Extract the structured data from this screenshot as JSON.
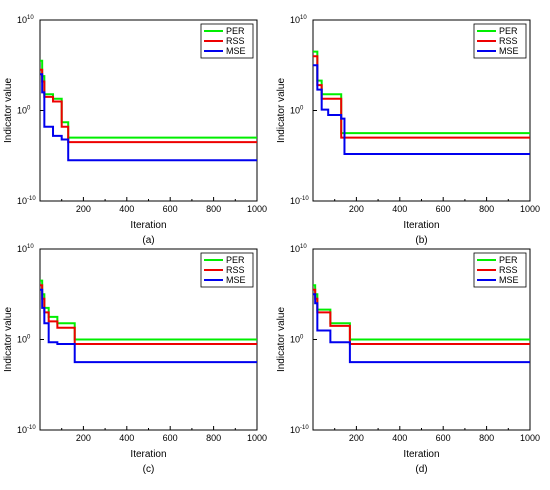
{
  "chart_data": [
    {
      "type": "line",
      "caption": "(a)",
      "xlabel": "Iteration",
      "ylabel": "Indicator value",
      "xlim": [
        0,
        1000
      ],
      "ylim_exp": [
        -10,
        10
      ],
      "y_scale": "log",
      "x_ticks": [
        "200",
        "400",
        "600",
        "800",
        "1000"
      ],
      "y_ticks": [
        {
          "base": "10",
          "exp": "10"
        },
        {
          "base": "10",
          "exp": "0"
        },
        {
          "base": "10",
          "exp": "-10"
        }
      ],
      "legend_position": "top-right",
      "series": [
        {
          "name": "PER",
          "color": "#00ee00",
          "x": [
            0,
            10,
            20,
            30,
            60,
            100,
            130,
            1000
          ],
          "y_exp": [
            5.5,
            3.8,
            1.8,
            1.8,
            1.3,
            -1.3,
            -3.0,
            -3.0
          ]
        },
        {
          "name": "RSS",
          "color": "#ee0000",
          "x": [
            0,
            10,
            20,
            30,
            60,
            100,
            130,
            1000
          ],
          "y_exp": [
            4.5,
            3.2,
            1.5,
            1.5,
            1.0,
            -1.8,
            -3.5,
            -3.5
          ]
        },
        {
          "name": "MSE",
          "color": "#0000ee",
          "x": [
            0,
            10,
            20,
            30,
            60,
            100,
            130,
            1000
          ],
          "y_exp": [
            4.0,
            2.0,
            -1.8,
            -1.8,
            -2.8,
            -3.2,
            -5.5,
            -5.5
          ]
        }
      ]
    },
    {
      "type": "line",
      "caption": "(b)",
      "xlabel": "Iteration",
      "ylabel": "Indicator value",
      "xlim": [
        0,
        1000
      ],
      "ylim_exp": [
        -10,
        10
      ],
      "y_scale": "log",
      "x_ticks": [
        "200",
        "400",
        "600",
        "800",
        "1000"
      ],
      "y_ticks": [
        {
          "base": "10",
          "exp": "10"
        },
        {
          "base": "10",
          "exp": "0"
        },
        {
          "base": "10",
          "exp": "-10"
        }
      ],
      "legend_position": "top-right",
      "series": [
        {
          "name": "PER",
          "color": "#00ee00",
          "x": [
            0,
            20,
            40,
            70,
            130,
            145,
            1000
          ],
          "y_exp": [
            6.5,
            3.3,
            1.8,
            1.8,
            -2.5,
            -2.5,
            -2.5
          ]
        },
        {
          "name": "RSS",
          "color": "#ee0000",
          "x": [
            0,
            20,
            40,
            70,
            130,
            145,
            1000
          ],
          "y_exp": [
            6.0,
            2.8,
            1.3,
            1.3,
            -3.0,
            -3.0,
            -3.0
          ]
        },
        {
          "name": "MSE",
          "color": "#0000ee",
          "x": [
            0,
            20,
            40,
            70,
            130,
            145,
            1000
          ],
          "y_exp": [
            5.0,
            2.3,
            0.1,
            -0.5,
            -0.9,
            -4.8,
            -4.8
          ]
        }
      ]
    },
    {
      "type": "line",
      "caption": "(c)",
      "xlabel": "Iteration",
      "ylabel": "Indicator value",
      "xlim": [
        0,
        1000
      ],
      "ylim_exp": [
        -10,
        10
      ],
      "y_scale": "log",
      "x_ticks": [
        "200",
        "400",
        "600",
        "800",
        "1000"
      ],
      "y_ticks": [
        {
          "base": "10",
          "exp": "10"
        },
        {
          "base": "10",
          "exp": "0"
        },
        {
          "base": "10",
          "exp": "-10"
        }
      ],
      "legend_position": "top-right",
      "series": [
        {
          "name": "PER",
          "color": "#00ee00",
          "x": [
            0,
            10,
            20,
            40,
            80,
            160,
            1000
          ],
          "y_exp": [
            6.5,
            5.0,
            3.5,
            2.5,
            1.8,
            0.0,
            0.0
          ]
        },
        {
          "name": "RSS",
          "color": "#ee0000",
          "x": [
            0,
            10,
            20,
            40,
            80,
            160,
            1000
          ],
          "y_exp": [
            6.0,
            4.5,
            3.0,
            2.0,
            1.3,
            -0.5,
            -0.5
          ]
        },
        {
          "name": "MSE",
          "color": "#0000ee",
          "x": [
            0,
            10,
            20,
            40,
            80,
            160,
            1000
          ],
          "y_exp": [
            5.5,
            3.5,
            1.8,
            -0.3,
            -0.5,
            -2.5,
            -2.5
          ]
        }
      ]
    },
    {
      "type": "line",
      "caption": "(d)",
      "xlabel": "Iteration",
      "ylabel": "Indicator value",
      "xlim": [
        0,
        1000
      ],
      "ylim_exp": [
        -10,
        10
      ],
      "y_scale": "log",
      "x_ticks": [
        "200",
        "400",
        "600",
        "800",
        "1000"
      ],
      "y_ticks": [
        {
          "base": "10",
          "exp": "10"
        },
        {
          "base": "10",
          "exp": "0"
        },
        {
          "base": "10",
          "exp": "-10"
        }
      ],
      "legend_position": "top-right",
      "series": [
        {
          "name": "PER",
          "color": "#00ee00",
          "x": [
            0,
            10,
            20,
            80,
            170,
            1000
          ],
          "y_exp": [
            6.0,
            5.0,
            3.3,
            1.8,
            0.0,
            0.0
          ]
        },
        {
          "name": "RSS",
          "color": "#ee0000",
          "x": [
            0,
            10,
            20,
            80,
            170,
            1000
          ],
          "y_exp": [
            5.5,
            4.5,
            3.0,
            1.5,
            -0.5,
            -0.5
          ]
        },
        {
          "name": "MSE",
          "color": "#0000ee",
          "x": [
            0,
            10,
            20,
            80,
            170,
            1000
          ],
          "y_exp": [
            5.0,
            4.0,
            1.0,
            -0.3,
            -2.5,
            -2.5
          ]
        }
      ]
    }
  ]
}
